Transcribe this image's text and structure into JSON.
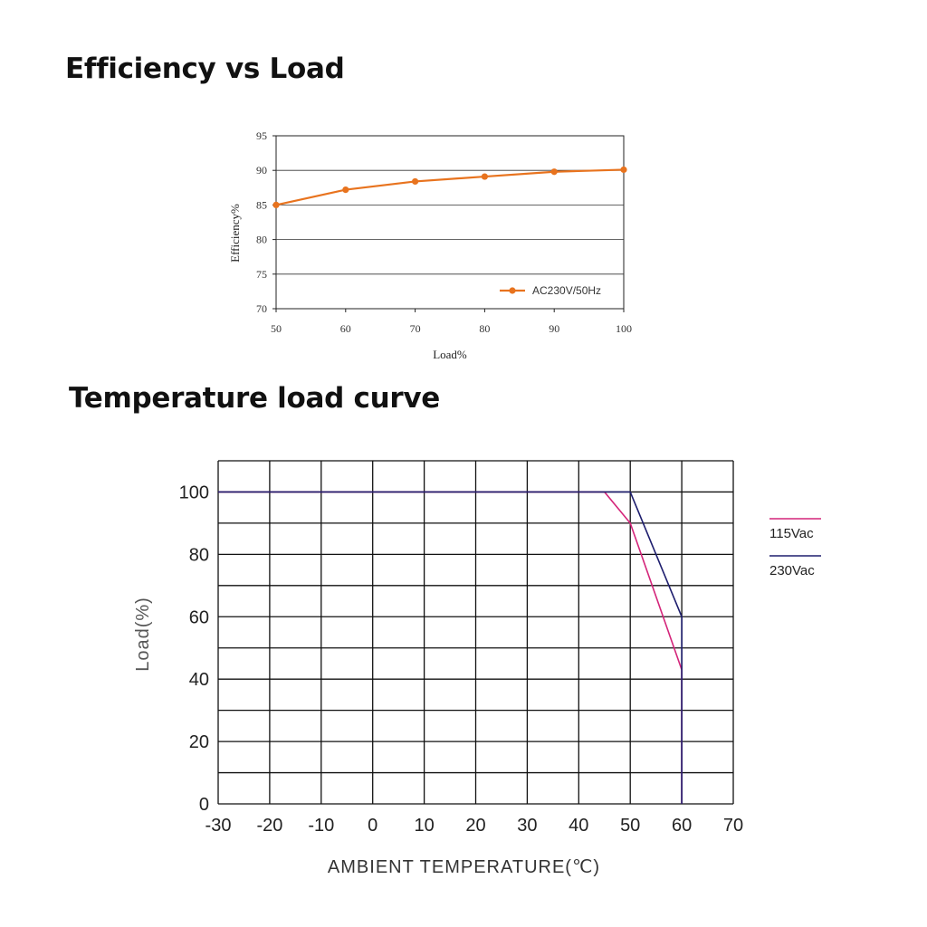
{
  "sections": {
    "efficiency_title": "Efficiency vs Load",
    "temperature_title": "Temperature load curve"
  },
  "chart_data": [
    {
      "type": "line",
      "title": "Efficiency vs Load",
      "xlabel": "Load%",
      "ylabel": "Efficiency%",
      "xlim": [
        50,
        100
      ],
      "ylim": [
        70,
        95
      ],
      "x_ticks": [
        50,
        60,
        70,
        80,
        90,
        100
      ],
      "y_ticks": [
        70,
        75,
        80,
        85,
        90,
        95
      ],
      "grid": "horizontal",
      "legend": "bottom-right",
      "series": [
        {
          "name": "AC230V/50Hz",
          "color": "#e8731e",
          "x": [
            50,
            60,
            70,
            80,
            90,
            100
          ],
          "values": [
            85.0,
            87.2,
            88.4,
            89.1,
            89.8,
            90.1
          ]
        }
      ]
    },
    {
      "type": "line",
      "title": "Temperature load curve",
      "xlabel": "AMBIENT TEMPERATURE(℃)",
      "ylabel": "Load(%)",
      "xlim": [
        -30,
        70
      ],
      "ylim": [
        0,
        110
      ],
      "x_ticks": [
        -30,
        -20,
        -10,
        0,
        10,
        20,
        30,
        40,
        50,
        60,
        70
      ],
      "y_ticks": [
        0,
        20,
        40,
        60,
        80,
        100
      ],
      "grid": "both",
      "legend": "right",
      "series": [
        {
          "name": "115Vac",
          "color": "#d4257a",
          "x": [
            -30,
            45,
            50,
            60,
            60
          ],
          "values": [
            100,
            100,
            90,
            43,
            0
          ]
        },
        {
          "name": "230Vac",
          "color": "#1e1e6e",
          "x": [
            -30,
            50,
            60,
            60
          ],
          "values": [
            100,
            100,
            60,
            0
          ]
        }
      ]
    }
  ]
}
